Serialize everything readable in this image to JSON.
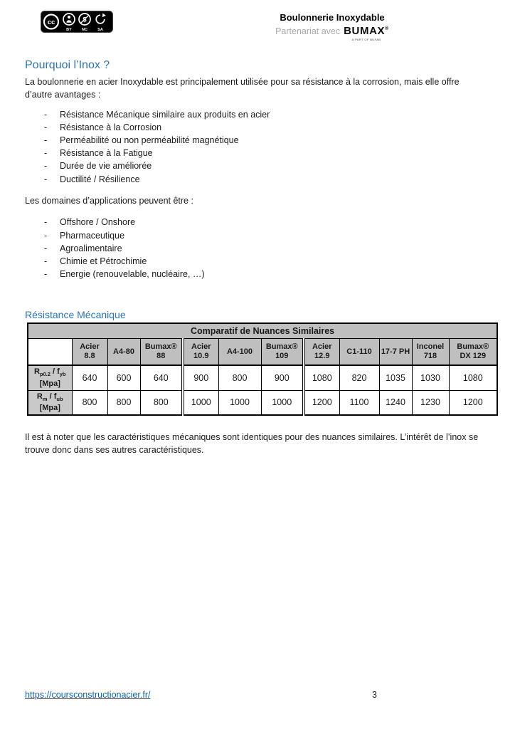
{
  "header": {
    "license_badge": {
      "cc": "cc",
      "by": "BY",
      "nc": "NC",
      "sa": "SA"
    },
    "doc_title": "Boulonnerie Inoxydable",
    "partner_prefix": "Partenariat avec",
    "partner_name": "BUMAX",
    "partner_reg": "®",
    "partner_tagline": "A PART OF BUFAB"
  },
  "content": {
    "section1_title": "Pourquoi l’Inox ?",
    "intro": "La boulonnerie en acier Inoxydable est principalement utilisée pour sa résistance à la corrosion, mais elle offre d’autre avantages :",
    "advantages": [
      "Résistance Mécanique similaire aux produits en acier",
      "Résistance à la Corrosion",
      "Perméabilité ou non perméabilité magnétique",
      "Résistance à la Fatigue",
      "Durée de vie améliorée",
      "Ductilité / Résilience"
    ],
    "domains_intro": "Les domaines d’applications peuvent être :",
    "domains": [
      "Offshore / Onshore",
      "Pharmaceutique",
      "Agroalimentaire",
      "Chimie et Pétrochimie",
      "Energie (renouvelable, nucléaire, …)"
    ],
    "section2_title": "Résistance Mécanique",
    "note": "Il est à noter que les caractéristiques mécaniques sont identiques pour des nuances similaires. L’intérêt de l’inox se trouve donc dans ses autres caractéristiques."
  },
  "table": {
    "title": "Comparatif de Nuances Similaires",
    "columns": [
      {
        "label": "Acier 8.8"
      },
      {
        "label": "A4-80"
      },
      {
        "label": "Bumax® 88"
      },
      {
        "label": "Acier 10.9",
        "group_start": true
      },
      {
        "label": "A4-100"
      },
      {
        "label": "Bumax® 109"
      },
      {
        "label": "Acier 12.9",
        "group_start": true
      },
      {
        "label": "C1-110"
      },
      {
        "label": "17-7 PH"
      },
      {
        "label": "Inconel 718"
      },
      {
        "label": "Bumax® DX 129"
      }
    ],
    "rows": [
      {
        "symbol1": "R",
        "symbol1_sub": "p0.2",
        "separator": "/",
        "symbol2": "f",
        "symbol2_sub": "yb",
        "unit": "[Mpa]",
        "values": [
          640,
          600,
          640,
          900,
          800,
          900,
          1080,
          820,
          1035,
          1030,
          1080
        ]
      },
      {
        "symbol1": "R",
        "symbol1_sub": "m",
        "separator": "/",
        "symbol2": "f",
        "symbol2_sub": "ub",
        "unit": "[Mpa]",
        "values": [
          800,
          800,
          800,
          1000,
          1000,
          1000,
          1200,
          1100,
          1240,
          1230,
          1200
        ]
      }
    ]
  },
  "footer": {
    "link": "https://coursconstructionacier.fr/",
    "page_number": "3"
  }
}
